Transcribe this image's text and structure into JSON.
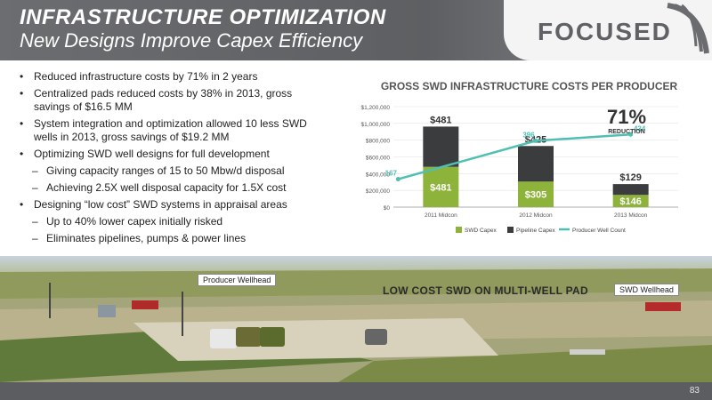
{
  "header": {
    "title": "INFRASTRUCTURE OPTIMIZATION",
    "subtitle": "New Designs Improve Capex Efficiency",
    "logo_text": "FOCUSED"
  },
  "bullets": [
    {
      "level": 1,
      "text": "Reduced infrastructure costs by 71% in 2 years"
    },
    {
      "level": 1,
      "text": "Centralized pads reduced costs by 38% in 2013, gross savings of $16.5 MM"
    },
    {
      "level": 1,
      "text": "System integration and optimization allowed 10 less SWD wells in 2013, gross savings of $19.2 MM"
    },
    {
      "level": 1,
      "text": "Optimizing SWD well designs for full development"
    },
    {
      "level": 2,
      "text": "Giving capacity ranges of 15 to 50 Mbw/d disposal"
    },
    {
      "level": 2,
      "text": "Achieving 2.5X well disposal capacity for 1.5X cost"
    },
    {
      "level": 1,
      "text": "Designing “low cost” SWD systems in appraisal areas"
    },
    {
      "level": 2,
      "text": "Up to 40% lower capex initially risked"
    },
    {
      "level": 2,
      "text": "Eliminates pipelines, pumps & power lines"
    }
  ],
  "chart_data": {
    "type": "bar",
    "title": "GROSS SWD INFRASTRUCTURE COSTS PER PRODUCER",
    "categories": [
      "2011 Midcon",
      "2012 Midcon",
      "2013 Midcon"
    ],
    "ylim": [
      0,
      1200000
    ],
    "yticks": [
      "$0",
      "$200,000",
      "$400,000",
      "$600,000",
      "$800,000",
      "$1,000,000",
      "$1,200,000"
    ],
    "ytick_values": [
      0,
      200000,
      400000,
      600000,
      800000,
      1000000,
      1200000
    ],
    "series": [
      {
        "name": "SWD Capex",
        "values": [
          481000,
          305000,
          146000
        ],
        "labels": [
          "$481",
          "$305",
          "$146"
        ],
        "color": "#8db33a"
      },
      {
        "name": "Pipeline Capex",
        "values": [
          481000,
          425000,
          129000
        ],
        "labels": [
          "$481",
          "$425",
          "$129"
        ],
        "color": "#3a3c3e"
      },
      {
        "name": "Producer Well Count",
        "type": "line",
        "values": [
          167,
          396,
          434
        ],
        "labels": [
          "167",
          "396",
          "434"
        ],
        "color": "#4fbfb2"
      }
    ],
    "legend": "bottom",
    "annotation": {
      "big": "71%",
      "small": "REDUCTION"
    }
  },
  "photo": {
    "caption": "LOW COST SWD ON MULTI-WELL PAD",
    "tag_left": "Producer Wellhead",
    "tag_right": "SWD Wellhead"
  },
  "footer": {
    "page": "83"
  }
}
